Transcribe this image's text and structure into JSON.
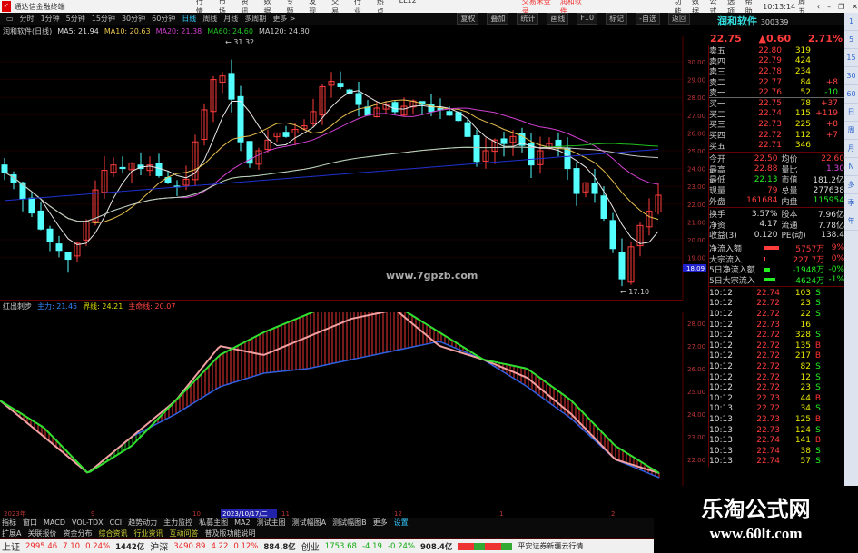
{
  "app": {
    "title": "通达信金融终端",
    "menu": [
      "行情",
      "市场",
      "资讯",
      "数据",
      "专题",
      "发现",
      "交易",
      "行业",
      "热点",
      "LL12"
    ],
    "trade_login": "交易未登录",
    "stock_link": "润和软件",
    "right_menu": [
      "功能",
      "数据",
      "公式",
      "选项",
      "帮助"
    ],
    "clock": "10:13:14",
    "weekday": "周五"
  },
  "periods": [
    "分时",
    "1分钟",
    "5分钟",
    "15分钟",
    "30分钟",
    "60分钟",
    "日线",
    "周线",
    "月线",
    "多周期",
    "更多 >"
  ],
  "period_selected": "日线",
  "toolbar_right": [
    "复权",
    "叠加",
    "统计",
    "画线",
    "F10",
    "标记",
    "-自选",
    "返回"
  ],
  "ma_info": {
    "name": "润和软件(日线)",
    "ma5": "MA5: 21.94",
    "ma10": "MA10: 20.63",
    "ma20": "MA20: 21.38",
    "ma60": "MA60: 24.60",
    "ma120": "MA120: 24.80"
  },
  "colors": {
    "up": "#ff3c3c",
    "down": "#54ffff",
    "ma5": "#e8e8e8",
    "ma10": "#e8c050",
    "ma20": "#d040d0",
    "ma60": "#20c020",
    "ma120": "#c8c8c8",
    "ma250": "#2030d0",
    "grid": "#5a0000"
  },
  "chart_data": [
    {
      "type": "candlestick",
      "title": "",
      "y_ticks": [
        30,
        29,
        28,
        27,
        26,
        25,
        24,
        23,
        22,
        21,
        20,
        19
      ],
      "ylim": [
        17,
        31.5
      ],
      "closes": [
        23.8,
        23.2,
        22.3,
        21.5,
        20.6,
        19.9,
        19.4,
        18.9,
        19.8,
        21.0,
        22.8,
        23.9,
        24.2,
        24.0,
        24.3,
        24.0,
        24.2,
        23.6,
        23.2,
        23.0,
        23.4,
        25.5,
        27.3,
        29.0,
        29.2,
        27.9,
        25.5,
        24.3,
        25.0,
        25.6,
        26.0,
        25.8,
        26.2,
        26.4,
        27.2,
        28.6,
        28.9,
        28.6,
        28.2,
        27.6,
        27.0,
        27.4,
        27.6,
        27.2,
        27.5,
        27.8,
        27.6,
        27.2,
        27.3,
        27.0,
        26.7,
        25.8,
        24.4,
        25.0,
        25.6,
        25.4,
        25.8,
        25.3,
        24.2,
        25.0,
        25.4,
        25.2,
        24.0,
        22.6,
        23.2,
        22.6,
        21.2,
        19.5,
        17.8,
        19.6,
        20.8,
        21.6,
        22.5
      ],
      "high_label": "31.32",
      "low_label": "17.10",
      "current_price_tag": "18.09",
      "watermark": "www.7gpzb.com"
    },
    {
      "type": "line+histogram",
      "title": "红出刺步",
      "series_labels": {
        "main": "主力: 21.45",
        "bound": "界线: 24.21",
        "life": "主命线: 20.07"
      },
      "y_ticks": [
        28,
        27,
        26,
        25,
        24,
        23,
        22
      ],
      "ylim": [
        20.5,
        29.5
      ],
      "green": [
        24.6,
        23.4,
        21.4,
        22.6,
        24.6,
        26.6,
        27.6,
        28.4,
        29.2,
        28.8,
        27.6,
        26.4,
        26.0,
        24.6,
        22.6,
        21.4
      ],
      "pink": [
        24.6,
        23.0,
        21.4,
        23.0,
        24.6,
        27.0,
        26.6,
        27.4,
        28.2,
        28.6,
        27.0,
        26.4,
        25.6,
        24.0,
        22.0,
        21.4
      ],
      "base": [
        24.6,
        23.0,
        21.4,
        23.0,
        24.0,
        25.2,
        25.8,
        26.0,
        26.4,
        26.8,
        27.2,
        26.4,
        25.2,
        23.8,
        22.0,
        21.2
      ]
    },
    {
      "type": "date_axis",
      "labels": [
        "2023年",
        "9",
        "10",
        "2023/10/17/二",
        "11",
        "12",
        "1",
        "2"
      ]
    }
  ],
  "quote": {
    "name": "润和软件",
    "code": "300339",
    "price": "22.75",
    "change": "▲0.60",
    "pct": "2.71%",
    "asks": [
      [
        "卖五",
        "22.80",
        "319",
        ""
      ],
      [
        "卖四",
        "22.79",
        "424",
        ""
      ],
      [
        "卖三",
        "22.78",
        "234",
        ""
      ],
      [
        "卖二",
        "22.77",
        "84",
        "+8"
      ],
      [
        "卖一",
        "22.76",
        "52",
        "-10"
      ]
    ],
    "bids": [
      [
        "买一",
        "22.75",
        "78",
        "+37"
      ],
      [
        "买二",
        "22.74",
        "115",
        "+119"
      ],
      [
        "买三",
        "22.73",
        "225",
        "+8"
      ],
      [
        "买四",
        "22.72",
        "112",
        "+7"
      ],
      [
        "买五",
        "22.71",
        "346",
        ""
      ]
    ],
    "stats": [
      [
        "今开",
        "22.50",
        "均价",
        "22.60"
      ],
      [
        "最高",
        "22.88",
        "量比",
        "1.30"
      ],
      [
        "最低",
        "22.13",
        "市值",
        "181.2亿"
      ],
      [
        "现量",
        "79",
        "总量",
        "277638"
      ],
      [
        "外盘",
        "161684",
        "内盘",
        "115954"
      ],
      [
        "换手",
        "3.57%",
        "股本",
        "7.96亿"
      ],
      [
        "净资",
        "4.17",
        "流通",
        "7.78亿"
      ],
      [
        "收益(3)",
        "0.120",
        "PE(动)",
        "138.4"
      ]
    ],
    "flows": [
      [
        "净流入额",
        "5757万",
        "9%"
      ],
      [
        "大宗流入",
        "227.7万",
        "0%"
      ],
      [
        "5日净流入额",
        "-1948万",
        "-0%"
      ],
      [
        "5日大宗流入",
        "-4624万",
        "-1%"
      ]
    ],
    "ticks": [
      [
        "10:12",
        "22.74",
        "103",
        "S"
      ],
      [
        "10:12",
        "22.72",
        "23",
        "S"
      ],
      [
        "10:12",
        "22.72",
        "22",
        "S"
      ],
      [
        "10:12",
        "22.73",
        "16",
        ""
      ],
      [
        "10:12",
        "22.72",
        "328",
        "S"
      ],
      [
        "10:12",
        "22.72",
        "135",
        "B"
      ],
      [
        "10:12",
        "22.72",
        "217",
        "B"
      ],
      [
        "10:12",
        "22.72",
        "82",
        "S"
      ],
      [
        "10:12",
        "22.72",
        "12",
        "S"
      ],
      [
        "10:12",
        "22.72",
        "23",
        "S"
      ],
      [
        "10:12",
        "22.73",
        "44",
        "B"
      ],
      [
        "10:13",
        "22.72",
        "34",
        "S"
      ],
      [
        "10:13",
        "22.73",
        "125",
        "B"
      ],
      [
        "10:13",
        "22.73",
        "124",
        "S"
      ],
      [
        "10:13",
        "22.74",
        "141",
        "B"
      ],
      [
        "10:13",
        "22.74",
        "38",
        "S"
      ],
      [
        "10:13",
        "22.74",
        "57",
        "S"
      ]
    ]
  },
  "side_periods": [
    "1",
    "5",
    "15",
    "30",
    "60",
    "日",
    "周",
    "月",
    "N",
    "多",
    "季",
    "年"
  ],
  "tabs_row1": [
    "指标",
    "窗口",
    "MACD",
    "VOL-TDX",
    "CCI",
    "趋势动力",
    "主力监控",
    "私募主图",
    "MA2",
    "测试主图",
    "测试幅图A",
    "测试幅图B",
    "更多",
    "设置"
  ],
  "tabs_row2": [
    "扩展A",
    "关联报价",
    "资金分布",
    "综合资讯",
    "行业资讯",
    "互动问答",
    "普及版功能说明"
  ],
  "status": {
    "sh": [
      "上证",
      "2995.46",
      "7.10",
      "0.24%",
      "1442亿"
    ],
    "hs": [
      "沪深",
      "3490.89",
      "4.22",
      "0.12%",
      "884.8亿"
    ],
    "cy": [
      "创业",
      "1753.68",
      "-4.19",
      "-0.24%",
      "908.4亿"
    ],
    "broker": "平安证券新疆云行情"
  },
  "site_watermark": {
    "title": "乐淘公式网",
    "url": "www.60lt.com"
  }
}
